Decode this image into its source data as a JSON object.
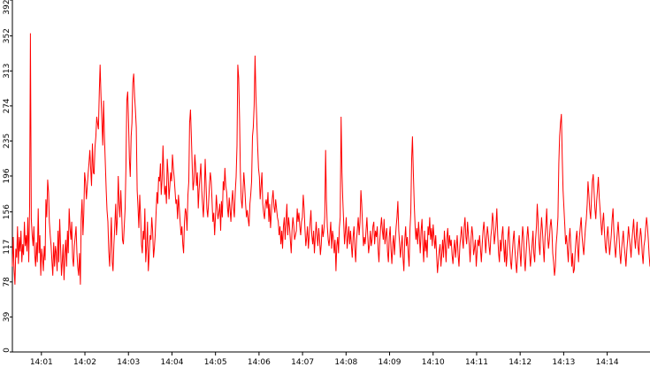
{
  "chart_data": {
    "type": "line",
    "title": "",
    "xlabel": "",
    "ylabel": "",
    "x_start": "14:00:20",
    "x_end": "14:14:59",
    "ylim": [
      0,
      392
    ],
    "y_ticks": [
      0,
      39,
      78,
      117,
      156,
      196,
      235,
      274,
      313,
      352,
      392
    ],
    "x_ticks": [
      "14:01",
      "14:02",
      "14:03",
      "14:04",
      "14:05",
      "14:06",
      "14:07",
      "14:08",
      "14:09",
      "14:10",
      "14:11",
      "14:12",
      "14:13",
      "14:14"
    ],
    "grid": false,
    "legend": "none",
    "line_color": "#ff0000",
    "series": [
      {
        "values": [
          95,
          128,
          92,
          75,
          115,
          105,
          140,
          98,
          128,
          112,
          135,
          100,
          120,
          108,
          145,
          118,
          130,
          112,
          150,
          100,
          162,
          355,
          148,
          130,
          118,
          140,
          108,
          95,
          122,
          100,
          160,
          110,
          130,
          85,
          115,
          105,
          90,
          118,
          102,
          170,
          150,
          192,
          178,
          145,
          130,
          118,
          100,
          85,
          122,
          95,
          118,
          110,
          90,
          135,
          100,
          148,
          118,
          85,
          100,
          120,
          80,
          110,
          125,
          95,
          135,
          110,
          160,
          138,
          125,
          145,
          105,
          95,
          118,
          128,
          140,
          110,
          95,
          85,
          110,
          75,
          148,
          170,
          130,
          155,
          200,
          190,
          170,
          185,
          198,
          210,
          225,
          205,
          185,
          232,
          200,
          198,
          228,
          240,
          262,
          255,
          248,
          290,
          320,
          285,
          258,
          230,
          280,
          240,
          210,
          180,
          158,
          145,
          112,
          95,
          120,
          150,
          100,
          90,
          120,
          140,
          165,
          130,
          148,
          196,
          165,
          150,
          180,
          155,
          125,
          120,
          140,
          160,
          205,
          280,
          290,
          255,
          215,
          195,
          240,
          255,
          300,
          310,
          285,
          270,
          250,
          180,
          160,
          138,
          175,
          150,
          120,
          110,
          135,
          125,
          160,
          100,
          118,
          145,
          90,
          108,
          130,
          125,
          150,
          135,
          105,
          115,
          130,
          155,
          178,
          165,
          195,
          190,
          210,
          175,
          192,
          230,
          200,
          175,
          185,
          165,
          215,
          198,
          170,
          185,
          200,
          190,
          220,
          205,
          195,
          180,
          165,
          170,
          148,
          175,
          160,
          145,
          130,
          140,
          120,
          110,
          145,
          160,
          155,
          135,
          175,
          190,
          255,
          270,
          240,
          205,
          180,
          190,
          220,
          205,
          185,
          200,
          160,
          180,
          195,
          210,
          180,
          165,
          150,
          175,
          215,
          190,
          160,
          150,
          165,
          185,
          200,
          190,
          170,
          145,
          155,
          130,
          150,
          175,
          160,
          148,
          155,
          165,
          135,
          168,
          150,
          190,
          180,
          205,
          185,
          178,
          160,
          150,
          172,
          158,
          145,
          168,
          180,
          160,
          150,
          178,
          195,
          230,
          320,
          305,
          260,
          200,
          170,
          160,
          180,
          200,
          185,
          165,
          150,
          158,
          148,
          140,
          165,
          175,
          190,
          240,
          250,
          275,
          330,
          285,
          260,
          230,
          205,
          195,
          170,
          185,
          200,
          165,
          155,
          148,
          165,
          170,
          160,
          178,
          145,
          165,
          138,
          155,
          170,
          180,
          162,
          155,
          170,
          160,
          150,
          145,
          130,
          140,
          120,
          135,
          115,
          140,
          150,
          125,
          145,
          165,
          130,
          150,
          140,
          125,
          110,
          135,
          150,
          140,
          125,
          130,
          135,
          160,
          145,
          155,
          140,
          130,
          145,
          150,
          175,
          160,
          138,
          118,
          128,
          140,
          115,
          130,
          145,
          158,
          130,
          120,
          135,
          110,
          128,
          145,
          130,
          118,
          138,
          125,
          108,
          120,
          142,
          128,
          135,
          150,
          225,
          170,
          140,
          125,
          118,
          130,
          145,
          115,
          135,
          128,
          110,
          125,
          90,
          118,
          128,
          110,
          138,
          150,
          262,
          200,
          170,
          145,
          120,
          135,
          150,
          115,
          128,
          140,
          120,
          135,
          118,
          105,
          128,
          140,
          115,
          100,
          125,
          138,
          150,
          130,
          145,
          180,
          165,
          140,
          118,
          128,
          120,
          135,
          150,
          128,
          110,
          120,
          135,
          118,
          125,
          140,
          145,
          120,
          135,
          128,
          140,
          115,
          100,
          125,
          138,
          150,
          135,
          125,
          148,
          120,
          130,
          138,
          112,
          100,
          128,
          140,
          115,
          98,
          120,
          130,
          108,
          125,
          140,
          150,
          168,
          135,
          120,
          105,
          118,
          130,
          105,
          90,
          125,
          140,
          118,
          128,
          110,
          95,
          135,
          155,
          215,
          240,
          200,
          165,
          140,
          125,
          138,
          120,
          145,
          130,
          110,
          135,
          148,
          120,
          100,
          135,
          112,
          125,
          105,
          140,
          130,
          150,
          125,
          138,
          118,
          142,
          128,
          115,
          130,
          108,
          88,
          100,
          112,
          120,
          95,
          108,
          125,
          105,
          135,
          120,
          100,
          128,
          138,
          115,
          130,
          118,
          125,
          108,
          98,
          115,
          125,
          105,
          118,
          130,
          108,
          95,
          118,
          128,
          140,
          125,
          115,
          138,
          150,
          128,
          120,
          145,
          130,
          118,
          100,
          125,
          140,
          130,
          108,
          115,
          125,
          95,
          110,
          125,
          118,
          130,
          115,
          100,
          120,
          135,
          145,
          130,
          110,
          125,
          140,
          130,
          118,
          108,
          128,
          138,
          155,
          145,
          120,
          130,
          140,
          160,
          130,
          110,
          100,
          125,
          112,
          130,
          140,
          118,
          100,
          125,
          95,
          108,
          130,
          140,
          118,
          100,
          92,
          110,
          125,
          135,
          115,
          100,
          88,
          105,
          118,
          130,
          110,
          95,
          120,
          140,
          128,
          105,
          90,
          110,
          128,
          140,
          125,
          110,
          95,
          108,
          120,
          135,
          110,
          100,
          125,
          140,
          165,
          145,
          120,
          108,
          130,
          150,
          135,
          118,
          100,
          128,
          142,
          160,
          130,
          115,
          125,
          140,
          148,
          135,
          110,
          100,
          85,
          95,
          120,
          132,
          150,
          210,
          240,
          255,
          265,
          215,
          180,
          160,
          140,
          120,
          130,
          115,
          100,
          125,
          138,
          118,
          95,
          110,
          88,
          92,
          110,
          125,
          135,
          115,
          100,
          128,
          140,
          150,
          130,
          118,
          108,
          125,
          138,
          148,
          165,
          190,
          175,
          158,
          148,
          170,
          190,
          198,
          178,
          160,
          148,
          168,
          180,
          195,
          172,
          158,
          145,
          130,
          145,
          155,
          135,
          118,
          110,
          128,
          140,
          125,
          108,
          118,
          130,
          148,
          160,
          135,
          118,
          105,
          120,
          132,
          145,
          128,
          110,
          98,
          115,
          125,
          135,
          118,
          108,
          95,
          112,
          125,
          140,
          128,
          118,
          105,
          125,
          135,
          148,
          128,
          115,
          130,
          145,
          118,
          108,
          125,
          138,
          128,
          110,
          98,
          118,
          125,
          138,
          150,
          140,
          125,
          108,
          95
        ]
      }
    ]
  }
}
